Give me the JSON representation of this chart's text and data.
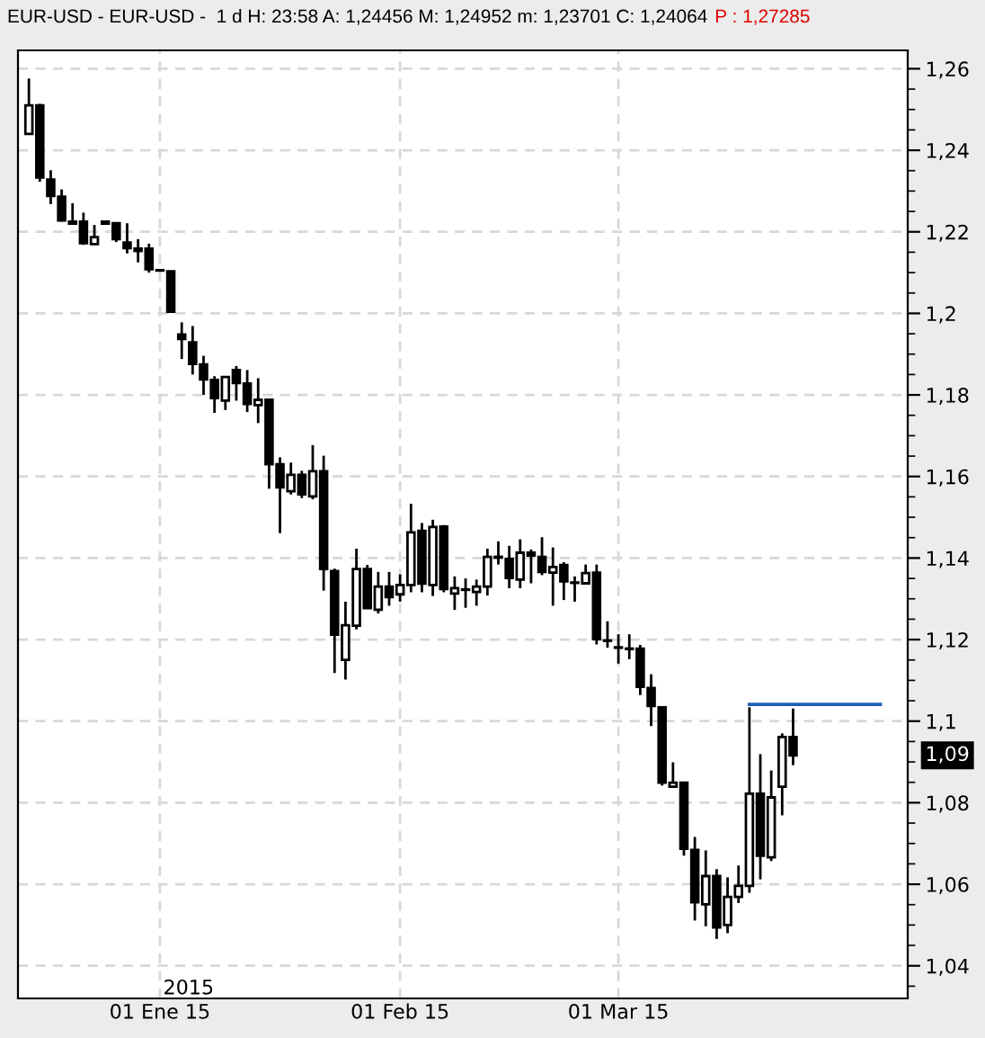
{
  "chart_data": {
    "type": "candlestick",
    "title": "EUR-USD - EUR-USD -  1 d H: 23:58 A: 1,24456 M: 1,24952 m: 1,23701 C: 1,24064",
    "subtitle": "P : 1,27285",
    "annotations": [
      "2015",
      "1,09"
    ],
    "categories": [
      null,
      null,
      null,
      null,
      null,
      null,
      null,
      null,
      null,
      null,
      null,
      null,
      "01 Ene 15",
      null,
      null,
      null,
      null,
      null,
      null,
      null,
      null,
      null,
      null,
      null,
      null,
      null,
      null,
      null,
      null,
      null,
      null,
      null,
      null,
      null,
      "01 Feb 15",
      null,
      null,
      null,
      null,
      null,
      null,
      null,
      null,
      null,
      null,
      null,
      null,
      null,
      null,
      null,
      null,
      null,
      null,
      null,
      "01 Mar 15",
      null,
      null,
      null,
      null,
      null,
      null,
      null,
      null,
      null,
      null,
      null,
      null,
      null,
      null,
      null,
      null,
      null,
      null,
      null,
      null,
      null,
      null,
      null,
      null
    ],
    "ohlc": [
      [
        1.244,
        1.2576,
        1.244,
        1.251
      ],
      [
        1.251,
        1.2514,
        1.2323,
        1.2333
      ],
      [
        1.2328,
        1.2351,
        1.2268,
        1.2288
      ],
      [
        1.2286,
        1.2304,
        1.2225,
        1.2228
      ],
      [
        1.2225,
        1.227,
        1.222,
        1.222
      ],
      [
        1.2225,
        1.2247,
        1.2168,
        1.2172
      ],
      [
        1.217,
        1.2217,
        1.2168,
        1.2187
      ],
      [
        1.2225,
        1.2225,
        1.222,
        1.222
      ],
      [
        1.2221,
        1.2221,
        1.2175,
        1.2182
      ],
      [
        1.2174,
        1.2221,
        1.2147,
        1.216
      ],
      [
        1.2159,
        1.2182,
        1.2125,
        1.2153
      ],
      [
        1.2159,
        1.2171,
        1.21,
        1.2108
      ],
      [
        1.2106,
        1.2106,
        1.2105,
        1.2105
      ],
      [
        1.2103,
        1.2103,
        1.2004,
        1.2004
      ],
      [
        1.1948,
        1.1978,
        1.1888,
        1.1937
      ],
      [
        1.1929,
        1.1969,
        1.185,
        1.1876
      ],
      [
        1.1875,
        1.1896,
        1.18,
        1.1838
      ],
      [
        1.1837,
        1.1846,
        1.1756,
        1.1792
      ],
      [
        1.1786,
        1.1844,
        1.1763,
        1.1844
      ],
      [
        1.1861,
        1.1871,
        1.1786,
        1.1829
      ],
      [
        1.1828,
        1.1861,
        1.1758,
        1.1778
      ],
      [
        1.1775,
        1.1841,
        1.1731,
        1.1788
      ],
      [
        1.1788,
        1.1788,
        1.157,
        1.163
      ],
      [
        1.163,
        1.1647,
        1.1461,
        1.1573
      ],
      [
        1.1564,
        1.1634,
        1.1556,
        1.1604
      ],
      [
        1.1604,
        1.1614,
        1.1547,
        1.1556
      ],
      [
        1.1551,
        1.1677,
        1.1544,
        1.1613
      ],
      [
        1.1613,
        1.1651,
        1.132,
        1.1373
      ],
      [
        1.1368,
        1.1374,
        1.1118,
        1.1212
      ],
      [
        1.115,
        1.1293,
        1.1102,
        1.1235
      ],
      [
        1.1234,
        1.1423,
        1.1225,
        1.1373
      ],
      [
        1.1373,
        1.1383,
        1.1275,
        1.1277
      ],
      [
        1.1273,
        1.1366,
        1.1264,
        1.133
      ],
      [
        1.133,
        1.1366,
        1.1283,
        1.1304
      ],
      [
        1.1311,
        1.136,
        1.1293,
        1.1334
      ],
      [
        1.1334,
        1.1533,
        1.1316,
        1.1463
      ],
      [
        1.1467,
        1.1486,
        1.1316,
        1.1337
      ],
      [
        1.1334,
        1.1494,
        1.1307,
        1.1476
      ],
      [
        1.1477,
        1.1481,
        1.1316,
        1.1324
      ],
      [
        1.1313,
        1.1355,
        1.1273,
        1.1326
      ],
      [
        1.1323,
        1.135,
        1.1278,
        1.1322
      ],
      [
        1.1317,
        1.1347,
        1.1283,
        1.133
      ],
      [
        1.133,
        1.1423,
        1.1308,
        1.1403
      ],
      [
        1.1403,
        1.1441,
        1.1384,
        1.1401
      ],
      [
        1.1398,
        1.143,
        1.1326,
        1.1351
      ],
      [
        1.1347,
        1.1446,
        1.1326,
        1.1413
      ],
      [
        1.1413,
        1.1421,
        1.1338,
        1.1406
      ],
      [
        1.1403,
        1.1451,
        1.1358,
        1.1366
      ],
      [
        1.1364,
        1.1426,
        1.1283,
        1.1378
      ],
      [
        1.1383,
        1.139,
        1.1297,
        1.1343
      ],
      [
        1.134,
        1.1355,
        1.1293,
        1.1339
      ],
      [
        1.1338,
        1.1384,
        1.1338,
        1.1363
      ],
      [
        1.1364,
        1.1384,
        1.1188,
        1.1201
      ],
      [
        1.1198,
        1.1245,
        1.118,
        1.1197
      ],
      [
        1.1181,
        1.1213,
        1.1141,
        1.118
      ],
      [
        1.1178,
        1.1213,
        1.1152,
        1.1177
      ],
      [
        1.1178,
        1.1187,
        1.1064,
        1.1084
      ],
      [
        1.1081,
        1.1115,
        1.0988,
        1.1037
      ],
      [
        1.1034,
        1.1034,
        1.0842,
        1.0849
      ],
      [
        1.0839,
        1.0899,
        1.0839,
        1.0849
      ],
      [
        1.0849,
        1.0849,
        1.067,
        1.0687
      ],
      [
        1.0684,
        1.0716,
        1.0511,
        1.0556
      ],
      [
        1.0551,
        1.0683,
        1.0497,
        1.062
      ],
      [
        1.062,
        1.0637,
        1.0466,
        1.0494
      ],
      [
        1.05,
        1.0617,
        1.048,
        1.0569
      ],
      [
        1.0569,
        1.0646,
        1.0554,
        1.0596
      ],
      [
        1.0596,
        1.1034,
        1.0579,
        1.0822
      ],
      [
        1.0822,
        1.0919,
        1.0612,
        1.067
      ],
      [
        1.0666,
        1.0879,
        1.0657,
        1.0813
      ],
      [
        1.0839,
        1.097,
        1.0769,
        1.0961
      ],
      [
        1.0961,
        1.1031,
        1.0892,
        1.0916
      ],
      null,
      null,
      null,
      null,
      null,
      null,
      null,
      null
    ],
    "series": [
      {
        "type": "line",
        "color": "#1f5fb4",
        "values": [
          null,
          null,
          null,
          null,
          null,
          null,
          null,
          null,
          null,
          null,
          null,
          null,
          null,
          null,
          null,
          null,
          null,
          null,
          null,
          null,
          null,
          null,
          null,
          null,
          null,
          null,
          null,
          null,
          null,
          null,
          null,
          null,
          null,
          null,
          null,
          null,
          null,
          null,
          null,
          null,
          null,
          null,
          null,
          null,
          null,
          null,
          null,
          null,
          null,
          null,
          null,
          null,
          null,
          null,
          null,
          null,
          null,
          null,
          null,
          null,
          null,
          null,
          null,
          null,
          null,
          null,
          1.1041,
          1.1041,
          1.1041,
          1.1041,
          1.1041,
          1.1041,
          1.1041,
          1.1041,
          1.1041,
          1.1041,
          1.1041,
          1.1041,
          1.1041
        ]
      }
    ],
    "ylim": [
      1.032,
      1.2645
    ],
    "yticks": [
      {
        "value": 1.04,
        "label": "1,04"
      },
      {
        "value": 1.06,
        "label": "1,06"
      },
      {
        "value": 1.08,
        "label": "1,08"
      },
      {
        "value": 1.1,
        "label": "1,1"
      },
      {
        "value": 1.12,
        "label": "1,12"
      },
      {
        "value": 1.14,
        "label": "1,14"
      },
      {
        "value": 1.16,
        "label": "1,16"
      },
      {
        "value": 1.18,
        "label": "1,18"
      },
      {
        "value": 1.2,
        "label": "1,2"
      },
      {
        "value": 1.22,
        "label": "1,22"
      },
      {
        "value": 1.24,
        "label": "1,24"
      },
      {
        "value": 1.26,
        "label": "1,26"
      }
    ],
    "grid": true,
    "legend": false
  }
}
